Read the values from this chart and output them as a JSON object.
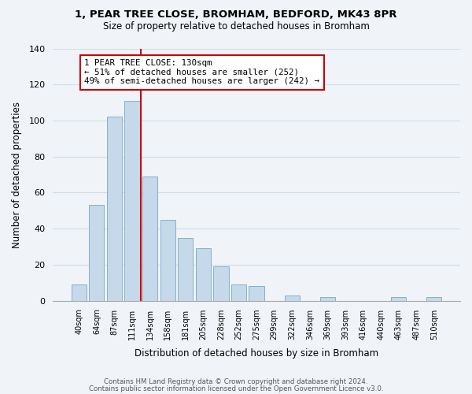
{
  "title1": "1, PEAR TREE CLOSE, BROMHAM, BEDFORD, MK43 8PR",
  "title2": "Size of property relative to detached houses in Bromham",
  "xlabel": "Distribution of detached houses by size in Bromham",
  "ylabel": "Number of detached properties",
  "bar_labels": [
    "40sqm",
    "64sqm",
    "87sqm",
    "111sqm",
    "134sqm",
    "158sqm",
    "181sqm",
    "205sqm",
    "228sqm",
    "252sqm",
    "275sqm",
    "299sqm",
    "322sqm",
    "346sqm",
    "369sqm",
    "393sqm",
    "416sqm",
    "440sqm",
    "463sqm",
    "487sqm",
    "510sqm"
  ],
  "bar_values": [
    9,
    53,
    102,
    111,
    69,
    45,
    35,
    29,
    19,
    9,
    8,
    0,
    3,
    0,
    2,
    0,
    0,
    0,
    2,
    0,
    2
  ],
  "bar_color": "#c5d9ea",
  "bar_edge_color": "#85b0cc",
  "vline_x": 3.5,
  "vline_color": "#cc0000",
  "annotation_line1": "1 PEAR TREE CLOSE: 130sqm",
  "annotation_line2": "← 51% of detached houses are smaller (252)",
  "annotation_line3": "49% of semi-detached houses are larger (242) →",
  "annotation_box_color": "#ffffff",
  "annotation_box_edge": "#cc0000",
  "ylim": [
    0,
    140
  ],
  "yticks": [
    0,
    20,
    40,
    60,
    80,
    100,
    120,
    140
  ],
  "footer1": "Contains HM Land Registry data © Crown copyright and database right 2024.",
  "footer2": "Contains public sector information licensed under the Open Government Licence v3.0.",
  "bg_color": "#f0f4f8",
  "grid_color": "#d0dce8",
  "title1_fontsize": 9.5,
  "title2_fontsize": 8.5
}
